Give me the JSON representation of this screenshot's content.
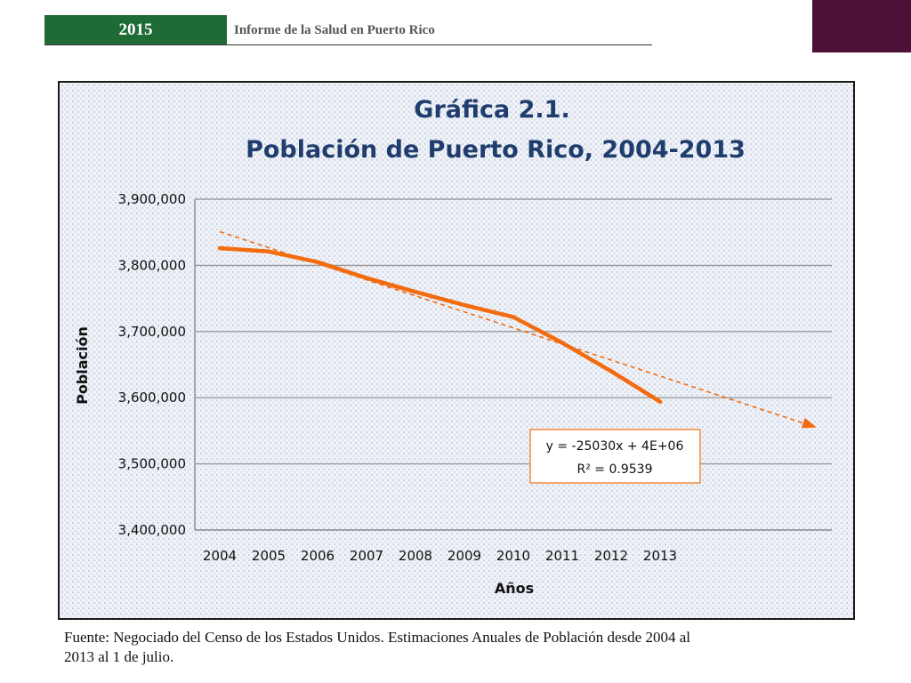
{
  "header": {
    "year": "2015",
    "title": "Informe de la Salud en Puerto Rico"
  },
  "colors": {
    "header_green": "#1e6b35",
    "corner_block": "#4d1038",
    "series": "#f26b0e",
    "title": "#1f3d6e"
  },
  "chart_data": {
    "type": "line",
    "title": "Gráfica 2.1.",
    "subtitle": "Población de Puerto Rico, 2004-2013",
    "xlabel": "Años",
    "ylabel": "Población",
    "categories": [
      "2004",
      "2005",
      "2006",
      "2007",
      "2008",
      "2009",
      "2010",
      "2011",
      "2012",
      "2013"
    ],
    "series": [
      {
        "values": [
          3826000,
          3821000,
          3805000,
          3781000,
          3760000,
          3740000,
          3722000,
          3683000,
          3640000,
          3594000
        ]
      }
    ],
    "ylim": [
      3400000,
      3900000
    ],
    "yticks": [
      3400000,
      3500000,
      3600000,
      3700000,
      3800000,
      3900000
    ],
    "ytick_labels": [
      "3,400,000",
      "3,500,000",
      "3,600,000",
      "3,700,000",
      "3,800,000",
      "3,900,000"
    ],
    "grid": true,
    "legend": "none",
    "trendline": {
      "type": "linear",
      "style": "dashed",
      "start": {
        "x": 2004,
        "y": 3851000
      },
      "end": {
        "x": 2016.2,
        "y": 3555000
      },
      "equation": "y = -25030x + 4E+06",
      "r_squared": "R² = 0.9539"
    }
  },
  "source": "Fuente: Negociado del Censo de los Estados Unidos. Estimaciones Anuales de Población desde 2004 al 2013 al 1 de julio."
}
